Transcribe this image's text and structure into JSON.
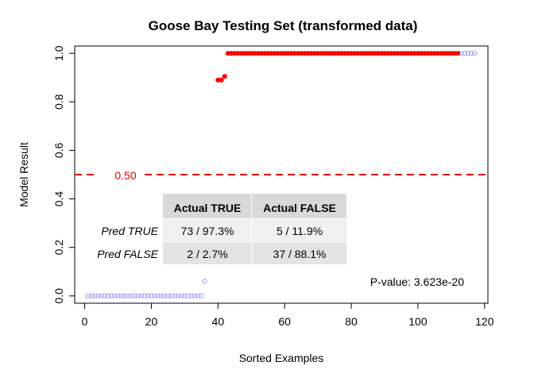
{
  "chart_data": {
    "type": "scatter",
    "title": "Goose Bay Testing Set (transformed data)",
    "xlabel": "Sorted Examples",
    "ylabel": "Model Result",
    "xlim": [
      -3,
      121
    ],
    "ylim": [
      -0.03,
      1.03
    ],
    "xticks": [
      0,
      20,
      40,
      60,
      80,
      100,
      120
    ],
    "yticks": [
      0.0,
      0.2,
      0.4,
      0.6,
      0.8,
      1.0
    ],
    "xtick_labels": [
      "0",
      "20",
      "40",
      "60",
      "80",
      "100",
      "120"
    ],
    "ytick_labels": [
      "0.0",
      "0.2",
      "0.4",
      "0.6",
      "0.8",
      "1.0"
    ],
    "grid": false,
    "reference_line": {
      "y": 0.5,
      "label": "0.50",
      "color": "#e00000",
      "style": "dashed"
    },
    "series": [
      {
        "color": "#9999ff",
        "style": "hollow",
        "points": [
          [
            1,
            0
          ],
          [
            2,
            0
          ],
          [
            3,
            0
          ],
          [
            4,
            0
          ],
          [
            5,
            0
          ],
          [
            6,
            0
          ],
          [
            7,
            0
          ],
          [
            8,
            0
          ],
          [
            9,
            0
          ],
          [
            10,
            0
          ],
          [
            11,
            0
          ],
          [
            12,
            0
          ],
          [
            13,
            0
          ],
          [
            14,
            0
          ],
          [
            15,
            0
          ],
          [
            16,
            0
          ],
          [
            17,
            0
          ],
          [
            18,
            0
          ],
          [
            19,
            0
          ],
          [
            20,
            0
          ],
          [
            21,
            0
          ],
          [
            22,
            0
          ],
          [
            23,
            0
          ],
          [
            24,
            0
          ],
          [
            25,
            0
          ],
          [
            26,
            0
          ],
          [
            27,
            0
          ],
          [
            28,
            0
          ],
          [
            29,
            0
          ],
          [
            30,
            0
          ],
          [
            31,
            0
          ],
          [
            32,
            0
          ],
          [
            33,
            0
          ],
          [
            34,
            0
          ],
          [
            35,
            0
          ],
          [
            36,
            0.06
          ],
          [
            113,
            1
          ],
          [
            114,
            1
          ],
          [
            115,
            1
          ],
          [
            116,
            1
          ],
          [
            117,
            1
          ]
        ]
      },
      {
        "color": "#ff0000",
        "style": "filled",
        "points": [
          [
            40,
            0.89
          ],
          [
            41,
            0.89
          ],
          [
            42,
            0.905
          ],
          [
            43,
            1
          ],
          [
            44,
            1
          ],
          [
            45,
            1
          ],
          [
            46,
            1
          ],
          [
            47,
            1
          ],
          [
            48,
            1
          ],
          [
            49,
            1
          ],
          [
            50,
            1
          ],
          [
            51,
            1
          ],
          [
            52,
            1
          ],
          [
            53,
            1
          ],
          [
            54,
            1
          ],
          [
            55,
            1
          ],
          [
            56,
            1
          ],
          [
            57,
            1
          ],
          [
            58,
            1
          ],
          [
            59,
            1
          ],
          [
            60,
            1
          ],
          [
            61,
            1
          ],
          [
            62,
            1
          ],
          [
            63,
            1
          ],
          [
            64,
            1
          ],
          [
            65,
            1
          ],
          [
            66,
            1
          ],
          [
            67,
            1
          ],
          [
            68,
            1
          ],
          [
            69,
            1
          ],
          [
            70,
            1
          ],
          [
            71,
            1
          ],
          [
            72,
            1
          ],
          [
            73,
            1
          ],
          [
            74,
            1
          ],
          [
            75,
            1
          ],
          [
            76,
            1
          ],
          [
            77,
            1
          ],
          [
            78,
            1
          ],
          [
            79,
            1
          ],
          [
            80,
            1
          ],
          [
            81,
            1
          ],
          [
            82,
            1
          ],
          [
            83,
            1
          ],
          [
            84,
            1
          ],
          [
            85,
            1
          ],
          [
            86,
            1
          ],
          [
            87,
            1
          ],
          [
            88,
            1
          ],
          [
            89,
            1
          ],
          [
            90,
            1
          ],
          [
            91,
            1
          ],
          [
            92,
            1
          ],
          [
            93,
            1
          ],
          [
            94,
            1
          ],
          [
            95,
            1
          ],
          [
            96,
            1
          ],
          [
            97,
            1
          ],
          [
            98,
            1
          ],
          [
            99,
            1
          ],
          [
            100,
            1
          ],
          [
            101,
            1
          ],
          [
            102,
            1
          ],
          [
            103,
            1
          ],
          [
            104,
            1
          ],
          [
            105,
            1
          ],
          [
            106,
            1
          ],
          [
            107,
            1
          ],
          [
            108,
            1
          ],
          [
            109,
            1
          ],
          [
            110,
            1
          ],
          [
            111,
            1
          ],
          [
            112,
            1
          ]
        ]
      }
    ],
    "confusion_table": {
      "columns": [
        "Actual TRUE",
        "Actual FALSE"
      ],
      "rows": [
        {
          "label": "Pred TRUE",
          "cells": [
            "73 / 97.3%",
            "5 / 11.9%"
          ]
        },
        {
          "label": "Pred FALSE",
          "cells": [
            "2 / 2.7%",
            "37 / 88.1%"
          ]
        }
      ],
      "header_color": "#d9d9d9",
      "row_colors": [
        "#f0f0f0",
        "#e3e3e3"
      ]
    },
    "annotation": "P-value: 3.623e-20"
  }
}
